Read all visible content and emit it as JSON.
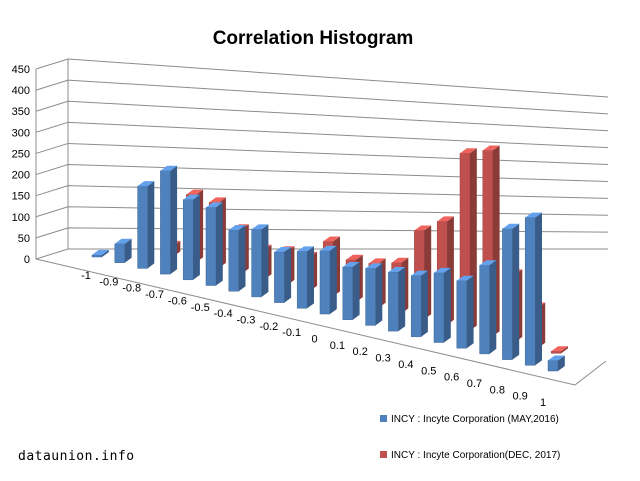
{
  "watermark": "dataunion.info",
  "chart_data": {
    "type": "bar",
    "title": "Correlation Histogram",
    "xlabel": "",
    "ylabel": "",
    "categories": [
      "-1",
      "-0.9",
      "-0.8",
      "-0.7",
      "-0.6",
      "-0.5",
      "-0.4",
      "-0.3",
      "-0.2",
      "-0.1",
      "0",
      "0.1",
      "0.2",
      "0.3",
      "0.4",
      "0.5",
      "0.6",
      "0.7",
      "0.8",
      "0.9",
      "1"
    ],
    "yticks": [
      0,
      50,
      100,
      150,
      200,
      250,
      300,
      350,
      400,
      450
    ],
    "ylim": [
      0,
      450
    ],
    "grid": true,
    "legend_position": "bottom-right",
    "series": [
      {
        "name": "INCY : Incyte Corporation (MAY,2016)",
        "color": "#4f81bd",
        "values": [
          5,
          45,
          195,
          245,
          190,
          185,
          145,
          160,
          120,
          135,
          150,
          125,
          135,
          140,
          145,
          165,
          160,
          210,
          310,
          350,
          25
        ]
      },
      {
        "name": "INCY : Incyte Corporation(DEC, 2017)",
        "color": "#c0504d",
        "values": [
          0,
          0,
          25,
          160,
          155,
          105,
          70,
          80,
          80,
          130,
          100,
          105,
          120,
          210,
          245,
          420,
          440,
          160,
          95,
          5,
          0
        ]
      }
    ]
  }
}
